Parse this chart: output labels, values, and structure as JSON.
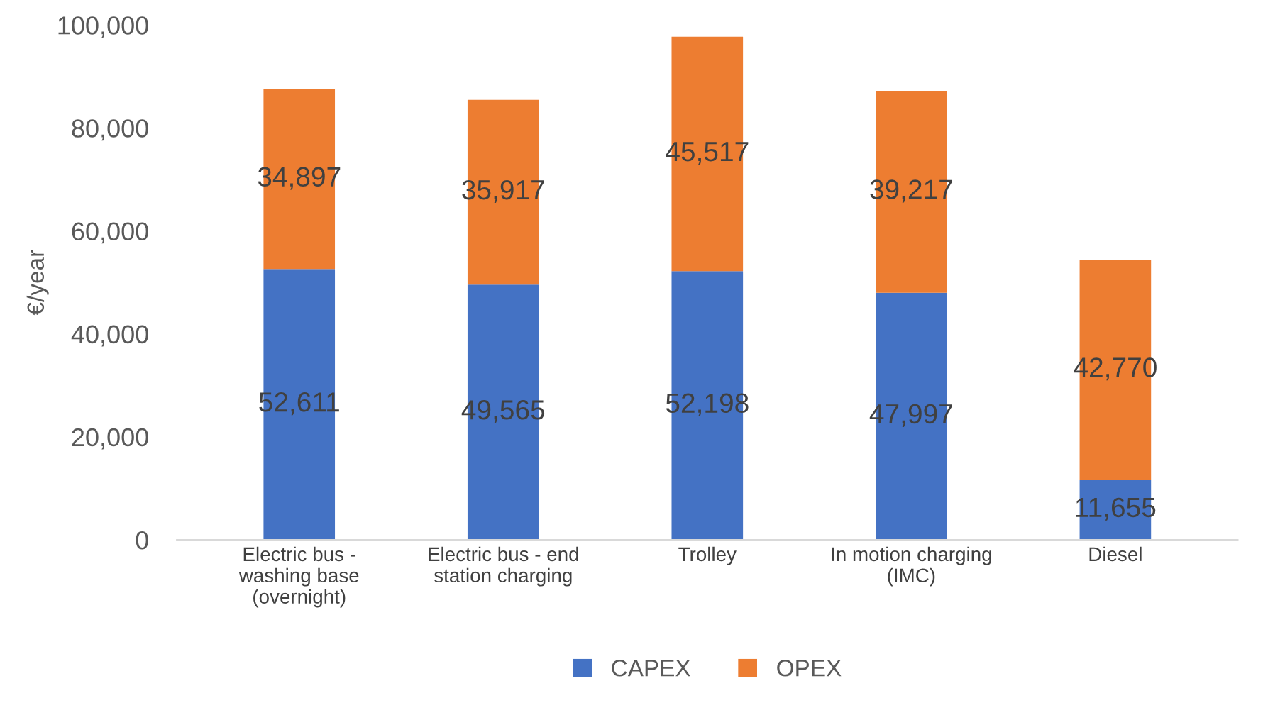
{
  "chart_data": {
    "type": "bar",
    "stacked": true,
    "ylabel": "€/year",
    "categories": [
      "Electric bus -\nwashing base\n(overnight)",
      "Electric bus - end\nstation charging",
      "Trolley",
      "In motion charging\n(IMC)",
      "Diesel"
    ],
    "series": [
      {
        "name": "CAPEX",
        "color": "#4472c4",
        "values": [
          52611,
          49565,
          52198,
          47997,
          11655
        ],
        "value_labels": [
          "52,611",
          "49,565",
          "52,198",
          "47,997",
          "11,655"
        ]
      },
      {
        "name": "OPEX",
        "color": "#ed7d31",
        "values": [
          34897,
          35917,
          45517,
          39217,
          42770
        ],
        "value_labels": [
          "34,897",
          "35,917",
          "45,517",
          "39,217",
          "42,770"
        ]
      }
    ],
    "ylim": [
      0,
      100000
    ],
    "yticks": [
      {
        "value": 0,
        "label": "0"
      },
      {
        "value": 20000,
        "label": "20,000"
      },
      {
        "value": 40000,
        "label": "40,000"
      },
      {
        "value": 60000,
        "label": "60,000"
      },
      {
        "value": 80000,
        "label": "80,000"
      },
      {
        "value": 100000,
        "label": "100,000"
      }
    ],
    "grid": false,
    "legend": "bottom"
  }
}
